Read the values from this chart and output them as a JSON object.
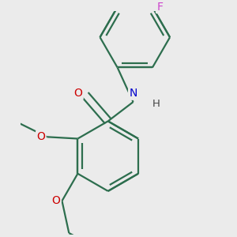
{
  "background_color": "#ebebeb",
  "bond_color": "#2d6e4e",
  "bond_width": 1.6,
  "figsize": [
    3.0,
    3.0
  ],
  "dpi": 100,
  "xlim": [
    -2.8,
    2.8
  ],
  "ylim": [
    -3.2,
    3.2
  ]
}
